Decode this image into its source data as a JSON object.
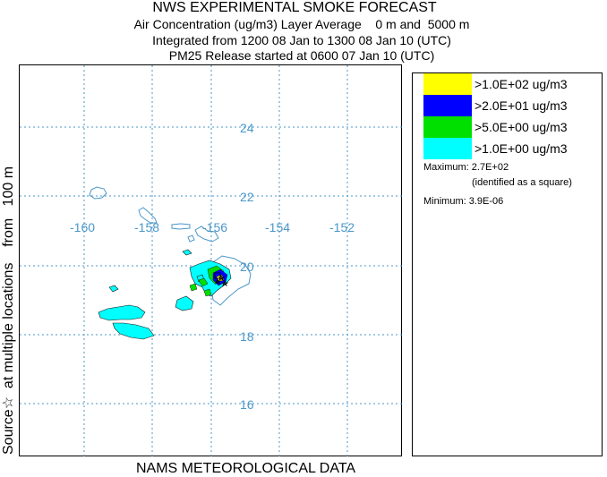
{
  "header": {
    "title": "NWS EXPERIMENTAL SMOKE FORECAST",
    "line1": "Air Concentration (ug/m3) Layer Average    0 m and  5000 m",
    "line2": "Integrated from 1200 08 Jan to 1300 08 Jan 10 (UTC)",
    "line3": "PM25 Release started at 0600 07 Jan 10 (UTC)"
  },
  "side_label": "Source☆  at multiple locations    from   100 m",
  "footer": "NAMS METEOROLOGICAL DATA",
  "map": {
    "lon_ticks": [
      "-160",
      "-158",
      "-156",
      "-154",
      "-152"
    ],
    "lat_ticks": [
      "24",
      "22",
      "20",
      "18",
      "16"
    ],
    "grid_color": "#4a97c9",
    "coast_color": "#4a97c9"
  },
  "legend": {
    "items": [
      {
        "label": ">1.0E+02 ug/m3",
        "color": "#ffff00"
      },
      {
        "label": ">2.0E+01 ug/m3",
        "color": "#0000ff"
      },
      {
        "label": ">5.0E+00 ug/m3",
        "color": "#00e000"
      },
      {
        "label": ">1.0E+00 ug/m3",
        "color": "#00ffff"
      }
    ],
    "maximum": "Maximum: 2.7E+02",
    "maximum_note": "(identified as a square)",
    "minimum": "Minimum: 3.9E-06"
  }
}
